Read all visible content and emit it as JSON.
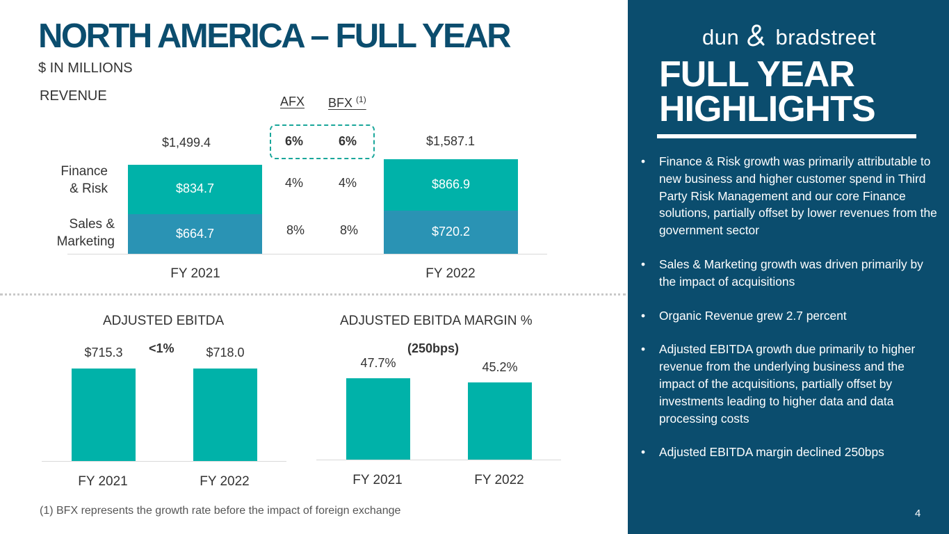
{
  "title": "NORTH AMERICA – FULL YEAR",
  "units": "$ IN MILLIONS",
  "footnote": "(1) BFX represents the growth rate before the impact of foreign exchange",
  "page_number": "4",
  "colors": {
    "navy": "#0b4d6e",
    "teal": "#00b2a9",
    "blue": "#2a93b4",
    "dash": "#19a69a"
  },
  "chart_data": [
    {
      "type": "bar",
      "stacked": true,
      "title": "REVENUE",
      "categories": [
        "FY 2021",
        "FY 2022"
      ],
      "totals": [
        "$1,499.4",
        "$1,587.1"
      ],
      "series": [
        {
          "name": "Sales & Marketing",
          "values": [
            664.7,
            720.2
          ],
          "labels": [
            "$664.7",
            "$720.2"
          ],
          "color": "#2a93b4"
        },
        {
          "name": "Finance & Risk",
          "values": [
            834.7,
            866.9
          ],
          "labels": [
            "$834.7",
            "$866.9"
          ],
          "color": "#00b2a9"
        }
      ],
      "segment_labels": {
        "finance": [
          "Finance",
          "& Risk"
        ],
        "sales": [
          "Sales &",
          "Marketing"
        ]
      },
      "growth_table": {
        "headers": [
          "AFX",
          "BFX"
        ],
        "bfx_note": "(1)",
        "total": [
          "6%",
          "6%"
        ],
        "finance_risk": [
          "4%",
          "4%"
        ],
        "sales_marketing": [
          "8%",
          "8%"
        ]
      }
    },
    {
      "type": "bar",
      "title": "ADJUSTED EBITDA",
      "categories": [
        "FY 2021",
        "FY 2022"
      ],
      "values": [
        715.3,
        718.0
      ],
      "labels": [
        "$715.3",
        "$718.0"
      ],
      "change": "<1%"
    },
    {
      "type": "bar",
      "title": "ADJUSTED EBITDA MARGIN %",
      "categories": [
        "FY 2021",
        "FY 2022"
      ],
      "values": [
        47.7,
        45.2
      ],
      "labels": [
        "47.7%",
        "45.2%"
      ],
      "change": "(250bps)"
    }
  ],
  "panel": {
    "logo_left": "dun",
    "logo_right": "bradstreet",
    "title_line1": "FULL YEAR",
    "title_line2": "HIGHLIGHTS",
    "bullet_symbol": "•",
    "bullets": [
      "Finance & Risk growth was primarily attributable to new business and higher customer spend in Third Party Risk Management and our core Finance solutions, partially offset by lower revenues from the government sector",
      "Sales & Marketing growth was driven primarily by the impact of acquisitions",
      "Organic Revenue grew 2.7 percent",
      "Adjusted EBITDA growth due primarily to higher revenue from the underlying business and the impact of the acquisitions, partially offset by investments leading to higher data and data processing costs",
      "Adjusted EBITDA margin declined 250bps"
    ]
  }
}
